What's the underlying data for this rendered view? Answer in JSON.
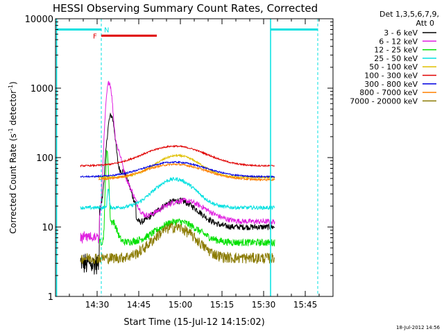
{
  "chart_data": {
    "type": "line",
    "title": "HESSI Observing Summary Count Rates, Corrected",
    "xlabel": "Start Time (15-Jul-12 14:15:02)",
    "ylabel_main": "Corrected Count Rate (s",
    "ylabel_sup1": "-1",
    "ylabel_mid": " detector",
    "ylabel_sup2": "-1",
    "ylabel_end": ")",
    "y_scale": "log",
    "ylim": [
      1,
      10000
    ],
    "xlim": [
      "14:15",
      "15:55"
    ],
    "x_ticks": [
      "14:30",
      "14:45",
      "15:00",
      "15:15",
      "15:30",
      "15:45"
    ],
    "y_ticks": [
      "1",
      "10",
      "100",
      "1000",
      "10000"
    ],
    "legend_header": [
      "Det 1,3,5,6,7,9,",
      "Att 0"
    ],
    "legend_position": "right",
    "series": [
      {
        "name": "3 - 6 keV",
        "color": "#000000"
      },
      {
        "name": "6 - 12 keV",
        "color": "#e020e0"
      },
      {
        "name": "12 - 25 keV",
        "color": "#00e000"
      },
      {
        "name": "25 - 50 keV",
        "color": "#00e0e0"
      },
      {
        "name": "50 - 100 keV",
        "color": "#e0c000"
      },
      {
        "name": "100 - 300 keV",
        "color": "#e00000"
      },
      {
        "name": "300 - 800 keV",
        "color": "#0000e0"
      },
      {
        "name": "800 - 7000 keV",
        "color": "#ff8000"
      },
      {
        "name": "7000 - 20000 keV",
        "color": "#8a7a00"
      }
    ],
    "flags": {
      "F": "F",
      "N": "N"
    },
    "timestamp": "18-Jul-2012 14:56"
  }
}
